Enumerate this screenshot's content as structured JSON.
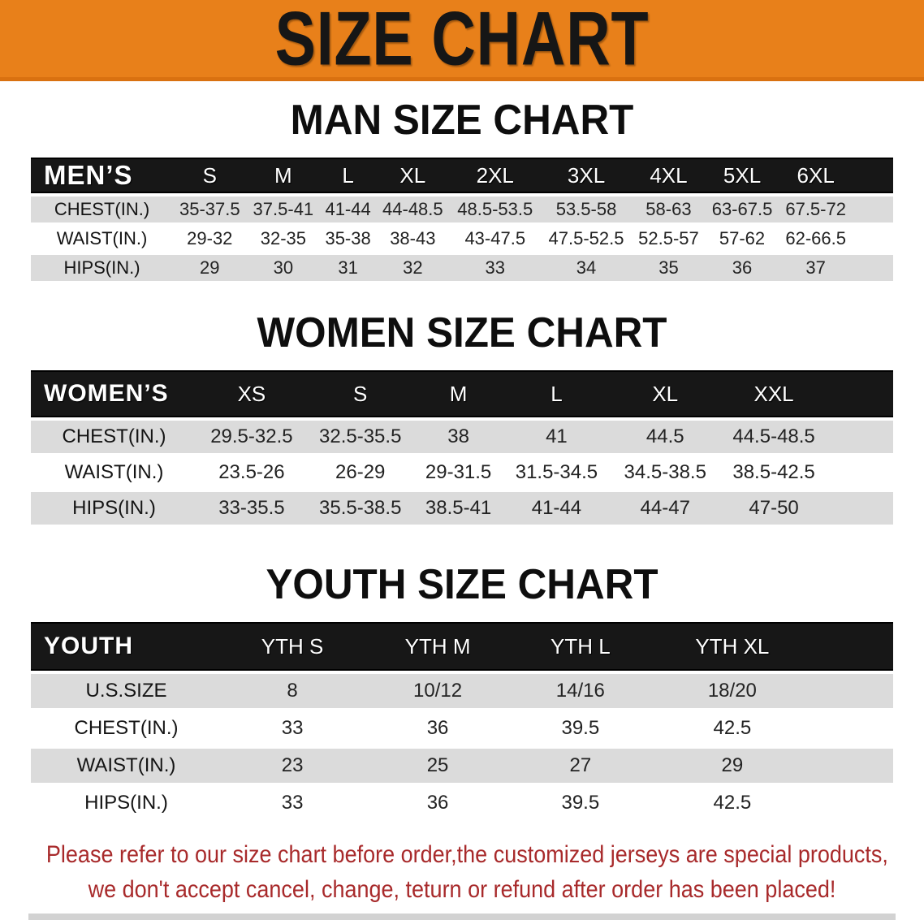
{
  "banner": {
    "title": "SIZE CHART"
  },
  "colors": {
    "banner_bg": "#E8801A",
    "banner_edge": "#D97110",
    "band_bg": "#171717",
    "row_shade": "#DBDBDB",
    "notice_color": "#A82A2B"
  },
  "sections": [
    {
      "id": "mens",
      "title": "MAN SIZE CHART",
      "header": {
        "label": "MEN’S",
        "sizes": [
          "S",
          "M",
          "L",
          "XL",
          "2XL",
          "3XL",
          "4XL",
          "5XL",
          "6XL"
        ]
      },
      "rows": [
        {
          "label": "CHEST(IN.)",
          "values": [
            "35-37.5",
            "37.5-41",
            "41-44",
            "44-48.5",
            "48.5-53.5",
            "53.5-58",
            "58-63",
            "63-67.5",
            "67.5-72"
          ]
        },
        {
          "label": "WAIST(IN.)",
          "values": [
            "29-32",
            "32-35",
            "35-38",
            "38-43",
            "43-47.5",
            "47.5-52.5",
            "52.5-57",
            "57-62",
            "62-66.5"
          ]
        },
        {
          "label": "HIPS(IN.)",
          "values": [
            "29",
            "30",
            "31",
            "32",
            "33",
            "34",
            "35",
            "36",
            "37"
          ]
        }
      ]
    },
    {
      "id": "womens",
      "title": "WOMEN SIZE CHART",
      "header": {
        "label": "WOMEN’S",
        "sizes": [
          "XS",
          "S",
          "M",
          "L",
          "XL",
          "XXL"
        ]
      },
      "rows": [
        {
          "label": "CHEST(IN.)",
          "values": [
            "29.5-32.5",
            "32.5-35.5",
            "38",
            "41",
            "44.5",
            "44.5-48.5"
          ]
        },
        {
          "label": "WAIST(IN.)",
          "values": [
            "23.5-26",
            "26-29",
            "29-31.5",
            "31.5-34.5",
            "34.5-38.5",
            "38.5-42.5"
          ]
        },
        {
          "label": "HIPS(IN.)",
          "values": [
            "33-35.5",
            "35.5-38.5",
            "38.5-41",
            "41-44",
            "44-47",
            "47-50"
          ]
        }
      ]
    },
    {
      "id": "youth",
      "title": "YOUTH SIZE CHART",
      "header": {
        "label": "YOUTH",
        "sizes": [
          "YTH S",
          "YTH M",
          "YTH L",
          "YTH XL"
        ]
      },
      "rows": [
        {
          "label": "U.S.SIZE",
          "values": [
            "8",
            "10/12",
            "14/16",
            "18/20"
          ]
        },
        {
          "label": "CHEST(IN.)",
          "values": [
            "33",
            "36",
            "39.5",
            "42.5"
          ]
        },
        {
          "label": "WAIST(IN.)",
          "values": [
            "23",
            "25",
            "27",
            "29"
          ]
        },
        {
          "label": "HIPS(IN.)",
          "values": [
            "33",
            "36",
            "39.5",
            "42.5"
          ]
        }
      ]
    }
  ],
  "footer": {
    "line1": "Please refer to our size chart before order,the customized jerseys are special products,",
    "line2": "we don't accept cancel, change, teturn or refund after order has been placed!"
  }
}
